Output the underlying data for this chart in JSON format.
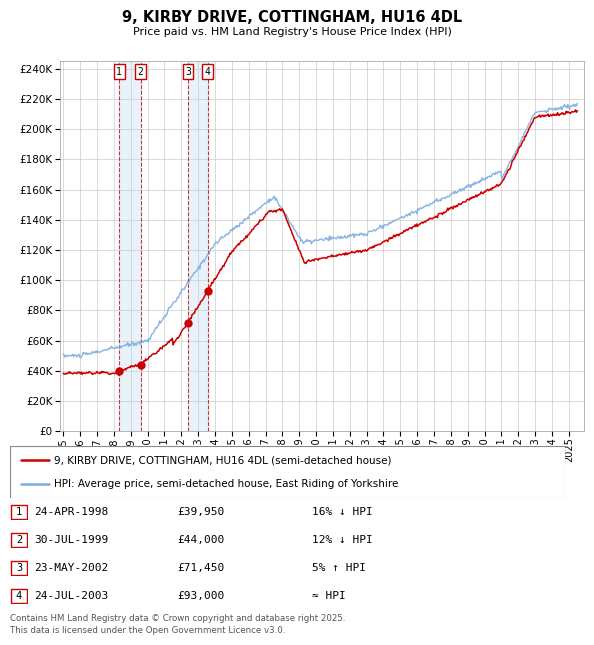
{
  "title": "9, KIRBY DRIVE, COTTINGHAM, HU16 4DL",
  "subtitle": "Price paid vs. HM Land Registry's House Price Index (HPI)",
  "house_color": "#cc0000",
  "hpi_color": "#7aade0",
  "transactions": [
    {
      "num": 1,
      "date_label": "24-APR-1998",
      "price": 39950,
      "rel": "16% ↓ HPI",
      "year": 1998.31
    },
    {
      "num": 2,
      "date_label": "30-JUL-1999",
      "price": 44000,
      "rel": "12% ↓ HPI",
      "year": 1999.58
    },
    {
      "num": 3,
      "date_label": "23-MAY-2002",
      "price": 71450,
      "rel": "5% ↑ HPI",
      "year": 2002.39
    },
    {
      "num": 4,
      "date_label": "24-JUL-2003",
      "price": 93000,
      "rel": "≈ HPI",
      "year": 2003.56
    }
  ],
  "legend_house": "9, KIRBY DRIVE, COTTINGHAM, HU16 4DL (semi-detached house)",
  "legend_hpi": "HPI: Average price, semi-detached house, East Riding of Yorkshire",
  "footer": "Contains HM Land Registry data © Crown copyright and database right 2025.\nThis data is licensed under the Open Government Licence v3.0.",
  "ylim": [
    0,
    245000
  ],
  "ytick_step": 20000
}
